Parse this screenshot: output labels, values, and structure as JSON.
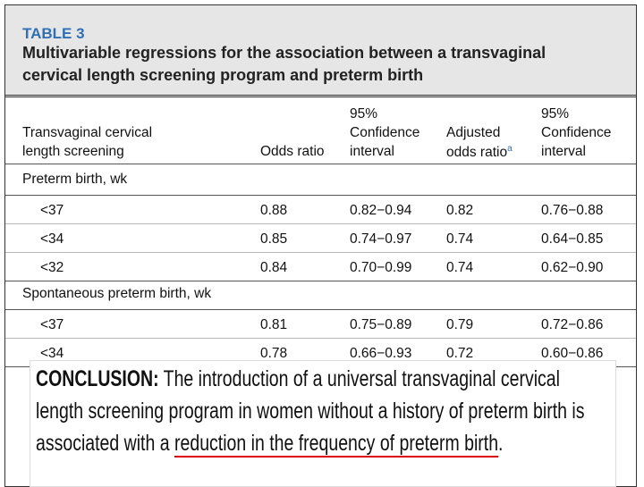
{
  "header": {
    "table_label": "TABLE 3",
    "title_lines": [
      "Multivariable regressions for the association between a transvaginal",
      "cervical length screening program and preterm birth"
    ]
  },
  "table": {
    "columns": [
      [
        "Transvaginal cervical",
        "length screening"
      ],
      [
        "Odds ratio"
      ],
      [
        "95%",
        "Confidence",
        "interval"
      ],
      [
        "Adjusted",
        "odds ratio"
      ],
      [
        "95%",
        "Confidence",
        "interval"
      ]
    ],
    "adjusted_superscript": "a",
    "sections": [
      {
        "label": "Preterm birth, wk",
        "rows": [
          [
            "<37",
            "0.88",
            "0.82−0.94",
            "0.82",
            "0.76−0.88"
          ],
          [
            "<34",
            "0.85",
            "0.74−0.97",
            "0.74",
            "0.64−0.85"
          ],
          [
            "<32",
            "0.84",
            "0.70−0.99",
            "0.74",
            "0.62−0.90"
          ]
        ]
      },
      {
        "label": "Spontaneous preterm birth, wk",
        "rows": [
          [
            "<37",
            "0.81",
            "0.75−0.89",
            "0.79",
            "0.72−0.86"
          ],
          [
            "<34",
            "0.78",
            "0.66−0.93",
            "0.72",
            "0.60−0.86"
          ]
        ]
      }
    ]
  },
  "conclusion": {
    "label": "CONCLUSION:",
    "lines": [
      "The introduction of a universal transvaginal cervical",
      "length screening program in women without a history of preterm birth is",
      "associated with a"
    ],
    "underlined": "reduction in the frequency of preterm birth",
    "end": "."
  }
}
